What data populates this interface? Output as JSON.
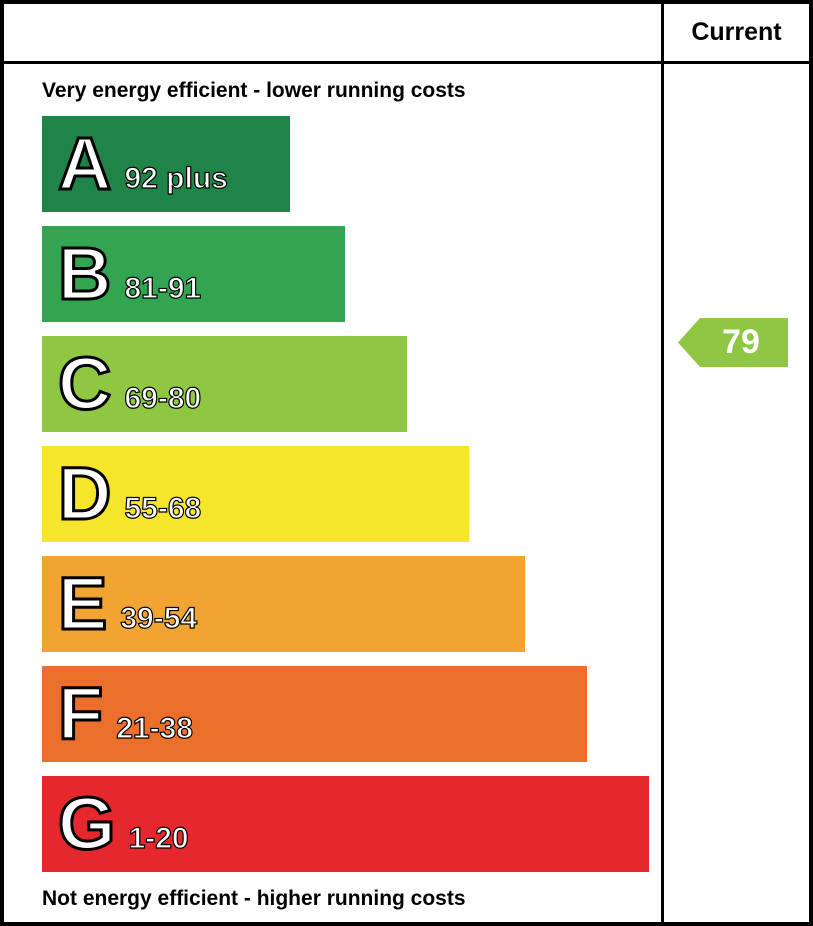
{
  "header": {
    "current_label": "Current"
  },
  "captions": {
    "top": "Very energy efficient - lower running costs",
    "bottom": "Not energy efficient - higher running costs"
  },
  "bands": [
    {
      "letter": "A",
      "range": "92 plus",
      "color": "#1e8447",
      "width_pct": 40
    },
    {
      "letter": "B",
      "range": "81-91",
      "color": "#33a451",
      "width_pct": 49
    },
    {
      "letter": "C",
      "range": "69-80",
      "color": "#8fc743",
      "width_pct": 59
    },
    {
      "letter": "D",
      "range": "55-68",
      "color": "#f7e52b",
      "width_pct": 69
    },
    {
      "letter": "E",
      "range": "39-54",
      "color": "#f2a433",
      "width_pct": 78
    },
    {
      "letter": "F",
      "range": "21-38",
      "color": "#ec6e2b",
      "width_pct": 88
    },
    {
      "letter": "G",
      "range": "1-20",
      "color": "#e5282d",
      "width_pct": 98
    }
  ],
  "current": {
    "value": "79",
    "band": "C",
    "color": "#8fc743"
  },
  "chart_data": {
    "type": "bar",
    "chart_kind": "epc-energy-efficiency-rating",
    "column_header": "Current",
    "top_caption": "Very energy efficient - lower running costs",
    "bottom_caption": "Not energy efficient - higher running costs",
    "categories": [
      "A",
      "B",
      "C",
      "D",
      "E",
      "F",
      "G"
    ],
    "band_ranges": [
      "92 plus",
      "81-91",
      "69-80",
      "55-68",
      "39-54",
      "21-38",
      "1-20"
    ],
    "band_colors": [
      "#1e8447",
      "#33a451",
      "#8fc743",
      "#f7e52b",
      "#f2a433",
      "#ec6e2b",
      "#e5282d"
    ],
    "bar_relative_widths_pct": [
      40,
      49,
      59,
      69,
      78,
      88,
      98
    ],
    "current_rating": 79,
    "current_band": "C",
    "current_arrow_color": "#8fc743",
    "legend_position": "none",
    "grid": false
  }
}
